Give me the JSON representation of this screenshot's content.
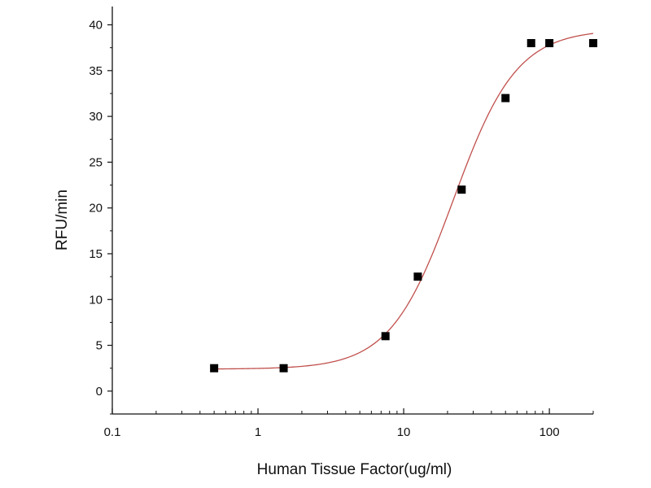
{
  "chart_data": {
    "type": "scatter",
    "title": "",
    "xlabel": "Human Tissue Factor(ug/ml)",
    "ylabel": "RFU/min",
    "x_scale": "log",
    "xlim": [
      0.1,
      200
    ],
    "ylim": [
      -2.5,
      42
    ],
    "x_ticks": [
      {
        "value": 0.1,
        "label": "0.1"
      },
      {
        "value": 1,
        "label": "1"
      },
      {
        "value": 10,
        "label": "10"
      },
      {
        "value": 100,
        "label": "100"
      }
    ],
    "y_ticks": [
      {
        "value": 0,
        "label": "0"
      },
      {
        "value": 5,
        "label": "5"
      },
      {
        "value": 10,
        "label": "10"
      },
      {
        "value": 15,
        "label": "15"
      },
      {
        "value": 20,
        "label": "20"
      },
      {
        "value": 25,
        "label": "25"
      },
      {
        "value": 30,
        "label": "30"
      },
      {
        "value": 35,
        "label": "35"
      },
      {
        "value": 40,
        "label": "40"
      }
    ],
    "grid": false,
    "legend": "none",
    "series": [
      {
        "marker": "square",
        "color": "#000000",
        "x": [
          0.5,
          1.5,
          7.5,
          12.5,
          25,
          50,
          75,
          100,
          200
        ],
        "y": [
          2.5,
          2.5,
          6.0,
          12.5,
          22.0,
          32.0,
          38.0,
          38.0,
          38.0
        ]
      }
    ],
    "fit_curve": {
      "model": "four-parameter logistic",
      "color": "#c0504d",
      "bottom": 2.4,
      "top": 39.5,
      "ec50": 22,
      "hill": 2.0
    }
  }
}
